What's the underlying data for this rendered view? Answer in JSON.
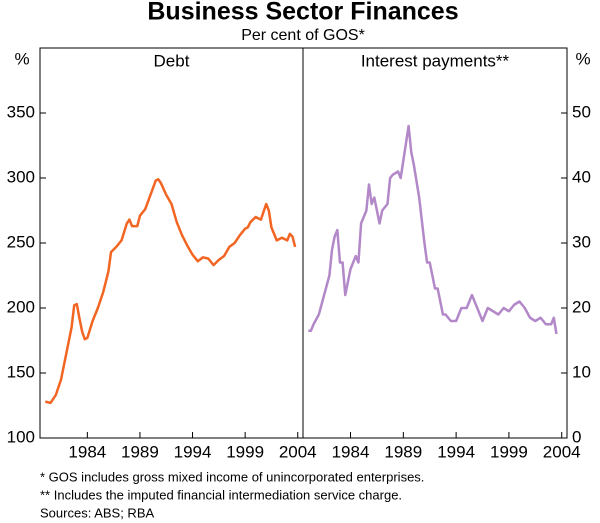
{
  "title": "Business Sector Finances",
  "subtitle": "Per cent of GOS*",
  "notes": [
    "*  GOS includes gross mixed income of unincorporated enterprises.",
    "** Includes the imputed financial intermediation service charge.",
    "Sources: ABS; RBA"
  ],
  "chart_data": [
    {
      "type": "line",
      "title": "Debt",
      "y_label": "%",
      "y_axis_side": "left",
      "x": [
        1980,
        1980.5,
        1981,
        1981.5,
        1982,
        1982.5,
        1982.75,
        1983,
        1983.25,
        1983.5,
        1983.75,
        1984,
        1984.5,
        1985,
        1985.5,
        1986,
        1986.25,
        1986.75,
        1987.25,
        1987.75,
        1988,
        1988.25,
        1988.75,
        1989,
        1989.5,
        1990,
        1990.5,
        1990.75,
        1991,
        1991.5,
        1992,
        1992.5,
        1993,
        1993.5,
        1994,
        1994.5,
        1995,
        1995.5,
        1996,
        1996.5,
        1997,
        1997.5,
        1998,
        1998.5,
        1999,
        1999.25,
        1999.5,
        2000,
        2000.5,
        2001,
        2001.25,
        2001.5,
        2002,
        2002.5,
        2003,
        2003.25,
        2003.5,
        2003.75
      ],
      "series": [
        {
          "color": "#f26522",
          "values": [
            128,
            127,
            133,
            145,
            165,
            185,
            202,
            203,
            192,
            182,
            176,
            177,
            190,
            200,
            212,
            228,
            243,
            247,
            252,
            265,
            268,
            263,
            263,
            271,
            276,
            287,
            298,
            299,
            296,
            287,
            280,
            266,
            256,
            248,
            241,
            236,
            239,
            238,
            233,
            237,
            240,
            247,
            250,
            256,
            261,
            262,
            266,
            270,
            268,
            280,
            275,
            262,
            252,
            254,
            252,
            257,
            255,
            247
          ]
        }
      ],
      "xlim": [
        1979.5,
        2004.5
      ],
      "xticks": [
        1984,
        1989,
        1994,
        1999,
        2004
      ],
      "ylim": [
        100,
        400
      ],
      "yticks": [
        100,
        150,
        200,
        250,
        300,
        350
      ]
    },
    {
      "type": "line",
      "title": "Interest payments**",
      "y_label": "%",
      "y_axis_side": "right",
      "x": [
        1980,
        1980.25,
        1980.5,
        1981,
        1981.5,
        1982,
        1982.25,
        1982.5,
        1982.75,
        1983,
        1983.25,
        1983.5,
        1984,
        1984.5,
        1984.75,
        1985,
        1985.5,
        1985.75,
        1986,
        1986.25,
        1986.5,
        1986.75,
        1987,
        1987.5,
        1987.75,
        1988,
        1988.5,
        1988.75,
        1989.5,
        1989.75,
        1990,
        1990.5,
        1991,
        1991.25,
        1991.5,
        1992,
        1992.25,
        1992.75,
        1993,
        1993.5,
        1994,
        1994.5,
        1995,
        1995.25,
        1995.5,
        1996,
        1996.5,
        1997,
        1997.5,
        1998,
        1998.5,
        1999,
        1999.5,
        2000,
        2000.5,
        2001,
        2001.5,
        2002,
        2002.5,
        2003,
        2003.25,
        2003.5
      ],
      "series": [
        {
          "color": "#b388c8",
          "values": [
            16.5,
            16.5,
            17.5,
            19,
            22,
            25,
            29,
            31,
            32,
            27,
            27,
            22,
            26,
            28,
            27,
            33,
            35,
            39,
            36,
            37,
            35,
            33,
            35,
            36,
            40,
            40.5,
            41,
            40,
            48,
            44,
            42,
            37,
            30,
            27,
            27,
            23,
            23,
            19,
            19,
            18,
            18,
            20,
            20,
            21,
            22,
            20,
            18,
            20,
            19.5,
            19,
            20,
            19.5,
            20.5,
            21,
            20,
            18.5,
            18,
            18.5,
            17.5,
            17.5,
            18.5,
            16
          ]
        }
      ],
      "xlim": [
        1979.5,
        2004.5
      ],
      "xticks": [
        1984,
        1989,
        1994,
        1999,
        2004
      ],
      "ylim": [
        0,
        60
      ],
      "yticks": [
        0,
        10,
        20,
        30,
        40,
        50
      ]
    }
  ]
}
